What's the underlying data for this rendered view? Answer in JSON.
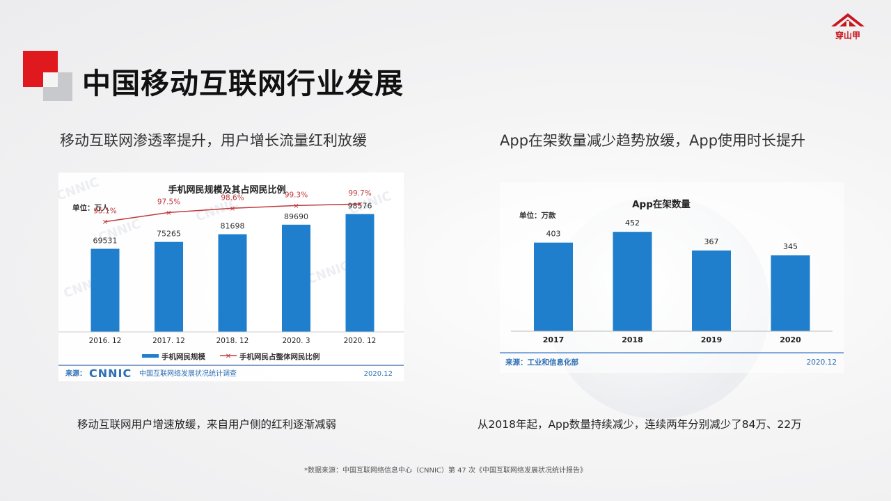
{
  "logo": {
    "text": "穿山甲"
  },
  "page": {
    "title": "中国移动互联网行业发展",
    "subhead_left": "移动互联网渗透率提升，用户增长流量红利放缓",
    "subhead_right": "App在架数量减少趋势放缓，App使用时长提升",
    "caption_left": "移动互联网用户增速放缓，来自用户侧的红利逐渐减弱",
    "caption_right": "从2018年起，App数量持续减少，连续两年分别减少了84万、22万",
    "footnote": "*数据来源：中国互联网络信息中心（CNNIC）第 47 次《中国互联网络发展状况统计报告》"
  },
  "colors": {
    "accent_red": "#e0191f",
    "bar_blue": "#1f7fcc",
    "line_red": "#c0393b",
    "title_dark": "#111111"
  },
  "chart_data": [
    {
      "type": "bar",
      "title": "手机网民规模及其占网民比例",
      "unit_label": "单位：万人",
      "categories": [
        "2016. 12",
        "2017. 12",
        "2018. 12",
        "2020. 3",
        "2020. 12"
      ],
      "series": [
        {
          "name": "手机网民规模",
          "type": "bar",
          "values": [
            69531,
            75265,
            81698,
            89690,
            98576
          ]
        },
        {
          "name": "手机网民占整体网民比例",
          "type": "line",
          "values": [
            95.1,
            97.5,
            98.6,
            99.3,
            99.7
          ],
          "labels": [
            "95.1%",
            "97.5%",
            "98.6%",
            "99.3%",
            "99.7%"
          ]
        }
      ],
      "ylim": [
        0,
        110000
      ],
      "line_ylim": [
        88,
        101
      ],
      "legend": "bottom",
      "source_prefix": "来源：",
      "source_logo": "CNNIC",
      "source_text": "中国互联网络发展状况统计调查",
      "date": "2020.12"
    },
    {
      "type": "bar",
      "title": "App在架数量",
      "unit_label": "单位：万款",
      "categories": [
        "2017",
        "2018",
        "2019",
        "2020"
      ],
      "values": [
        403,
        452,
        367,
        345
      ],
      "ylim": [
        0,
        500
      ],
      "source": "来源：工业和信息化部",
      "date": "2020.12"
    }
  ]
}
